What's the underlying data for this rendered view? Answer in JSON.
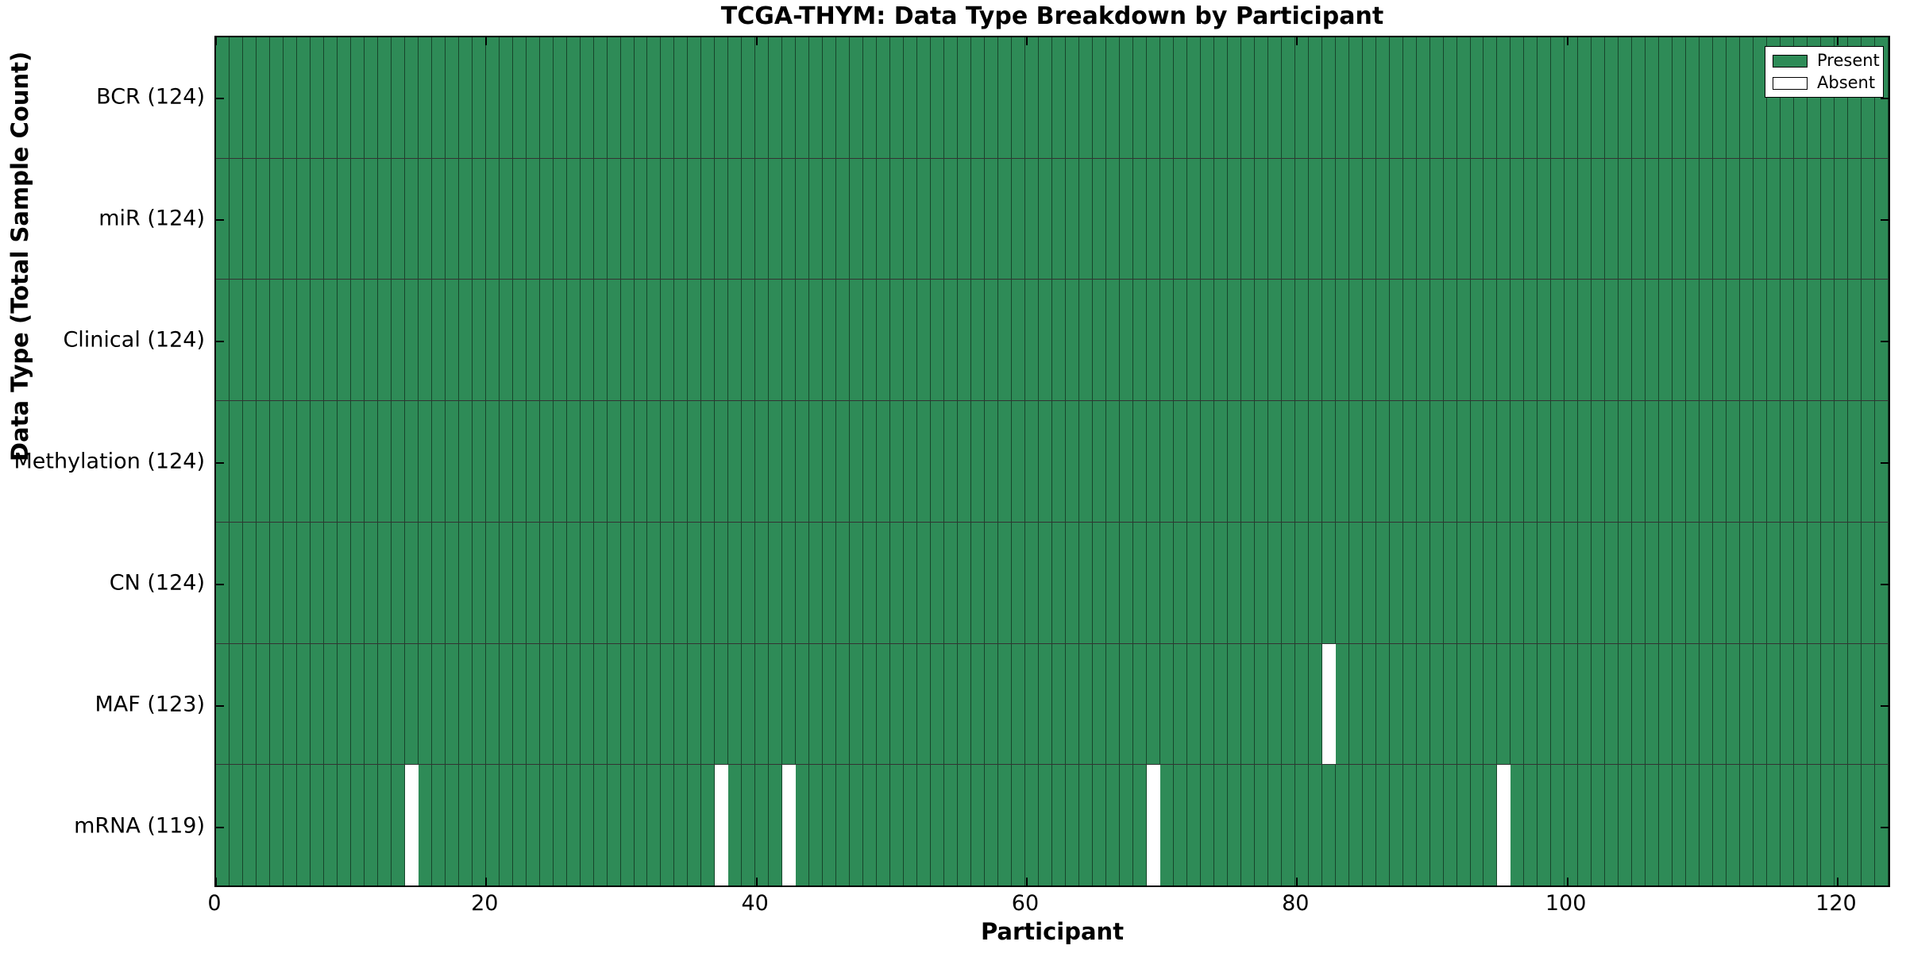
{
  "title": "TCGA-THYM: Data Type Breakdown by Participant",
  "colors": {
    "present": "#2e8b57",
    "absent": "#ffffff",
    "cell_edge": "rgba(0,0,0,0.50)",
    "row_edge": "rgba(0,0,0,0.80)",
    "axis": "#000000"
  },
  "chart_data": {
    "type": "heatmap",
    "title": "TCGA-THYM: Data Type Breakdown by Participant",
    "xlabel": "Participant",
    "ylabel": "Data Type (Total Sample Count)",
    "xlim": [
      0,
      124
    ],
    "n_participants": 124,
    "x_ticks": [
      0,
      20,
      40,
      60,
      80,
      100,
      120
    ],
    "grid": false,
    "legend_position": "upper right",
    "legend": [
      {
        "label": "Present",
        "color": "#2e8b57"
      },
      {
        "label": "Absent",
        "color": "#ffffff"
      }
    ],
    "rows": [
      {
        "label": "BCR (124)",
        "data_type": "BCR",
        "total": 124,
        "absent_participants": []
      },
      {
        "label": "miR (124)",
        "data_type": "miR",
        "total": 124,
        "absent_participants": []
      },
      {
        "label": "Clinical (124)",
        "data_type": "Clinical",
        "total": 124,
        "absent_participants": []
      },
      {
        "label": "Methylation (124)",
        "data_type": "Methylation",
        "total": 124,
        "absent_participants": []
      },
      {
        "label": "CN (124)",
        "data_type": "CN",
        "total": 124,
        "absent_participants": []
      },
      {
        "label": "MAF (123)",
        "data_type": "MAF",
        "total": 123,
        "absent_participants": [
          82
        ]
      },
      {
        "label": "mRNA (119)",
        "data_type": "mRNA",
        "total": 119,
        "absent_participants": [
          14,
          37,
          42,
          69,
          95
        ]
      }
    ]
  }
}
